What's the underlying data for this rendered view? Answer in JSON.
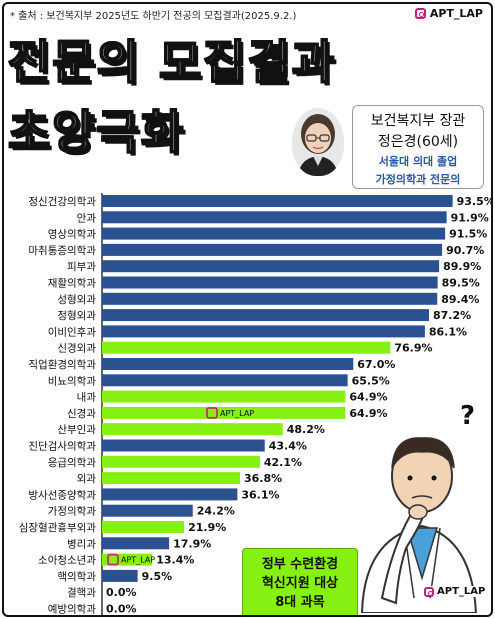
{
  "source": "* 출처 : 보건복지부 2025년도 하반기 전공의 모집결과(2025.9.2.)",
  "brand": {
    "handle": "APT_LAP",
    "icon": "instagram-icon",
    "color": "#c21f7a"
  },
  "headline": {
    "line1": "전문의 모집결과",
    "line2": "초양극화"
  },
  "minister": {
    "role": "보건복지부 장관",
    "name": "정은경(60세)",
    "education": "서울대 의대 졸업",
    "specialty": "가정의학과 전문의"
  },
  "note": {
    "lines": [
      "정부 수련환경",
      "혁신지원 대상",
      "8대 과목"
    ]
  },
  "colors": {
    "blue": "#2b5190",
    "green": "#86f013"
  },
  "chart_data": {
    "type": "bar",
    "orientation": "horizontal",
    "unit": "%",
    "xlim": [
      0,
      100
    ],
    "categories": [
      "정신건강의학과",
      "안과",
      "영상의학과",
      "마취통증의학과",
      "피부과",
      "재활의학과",
      "성형외과",
      "정형외과",
      "이비인후과",
      "신경외과",
      "직업환경의학과",
      "비뇨의학과",
      "내과",
      "신경과",
      "산부인과",
      "진단검사의학과",
      "응급의학과",
      "외과",
      "방사선종양학과",
      "가정의학과",
      "심장혈관흉부외과",
      "병리과",
      "소아청소년과",
      "핵의학과",
      "결핵과",
      "예방의학과"
    ],
    "values": [
      93.5,
      91.9,
      91.5,
      90.7,
      89.9,
      89.5,
      89.4,
      87.2,
      86.1,
      76.9,
      67.0,
      65.5,
      64.9,
      64.9,
      48.2,
      43.4,
      42.1,
      36.8,
      36.1,
      24.2,
      21.9,
      17.9,
      13.4,
      9.5,
      0.0,
      0.0
    ],
    "labels": [
      "93.5%",
      "91.9%",
      "91.5%",
      "90.7%",
      "89.9%",
      "89.5%",
      "89.4%",
      "87.2%",
      "86.1%",
      "76.9%",
      "67.0%",
      "65.5%",
      "64.9%",
      "64.9%",
      "48.2%",
      "43.4%",
      "42.1%",
      "36.8%",
      "36.1%",
      "24.2%",
      "21.9%",
      "17.9%",
      "13.4%",
      "9.5%",
      "0.0%",
      "0.0%"
    ],
    "highlight_groups": [
      "blue",
      "blue",
      "blue",
      "blue",
      "blue",
      "blue",
      "blue",
      "blue",
      "blue",
      "green",
      "blue",
      "blue",
      "green",
      "green",
      "green",
      "blue",
      "green",
      "green",
      "blue",
      "blue",
      "green",
      "blue",
      "green",
      "blue",
      "blue",
      "blue"
    ],
    "watermark_rows": [
      13,
      22
    ]
  }
}
